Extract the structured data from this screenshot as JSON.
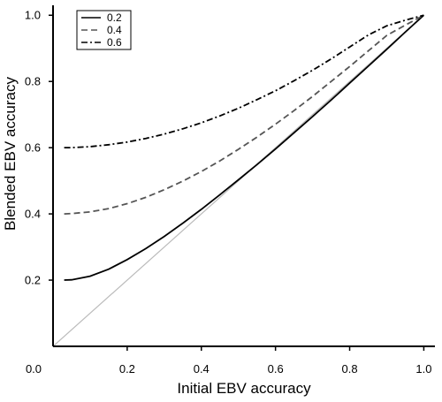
{
  "chart_data": {
    "type": "line",
    "xlabel": "Initial EBV accuracy",
    "ylabel": "Blended EBV accuracy",
    "xlim": [
      0.0,
      1.03
    ],
    "ylim": [
      0.0,
      1.03
    ],
    "origin_label": "0.0",
    "x_ticks": [
      {
        "value": 0.2,
        "label": "0.2"
      },
      {
        "value": 0.4,
        "label": "0.4"
      },
      {
        "value": 0.6,
        "label": "0.6"
      },
      {
        "value": 0.8,
        "label": "0.8"
      },
      {
        "value": 1.0,
        "label": "1.0"
      }
    ],
    "y_ticks": [
      {
        "value": 0.2,
        "label": "0.2"
      },
      {
        "value": 0.4,
        "label": "0.4"
      },
      {
        "value": 0.6,
        "label": "0.6"
      },
      {
        "value": 0.8,
        "label": "0.8"
      },
      {
        "value": 1.0,
        "label": "1.0"
      }
    ],
    "grid": false,
    "legend_position": "top-left",
    "reference_line": {
      "from": [
        0,
        0
      ],
      "to": [
        1.0,
        1.0
      ],
      "color": "#bbbbbb"
    },
    "x": [
      0.03,
      0.05,
      0.1,
      0.15,
      0.2,
      0.25,
      0.3,
      0.35,
      0.4,
      0.45,
      0.5,
      0.55,
      0.6,
      0.65,
      0.7,
      0.75,
      0.8,
      0.85,
      0.9,
      0.95,
      1.0
    ],
    "series": [
      {
        "name": "0.2",
        "dash": "solid",
        "color": "#000000",
        "values": [
          0.2,
          0.201,
          0.212,
          0.233,
          0.262,
          0.295,
          0.332,
          0.372,
          0.414,
          0.458,
          0.503,
          0.549,
          0.596,
          0.645,
          0.694,
          0.744,
          0.795,
          0.846,
          0.897,
          0.949,
          1.0
        ]
      },
      {
        "name": "0.4",
        "dash": "dashed",
        "color": "#555555",
        "values": [
          0.4,
          0.401,
          0.406,
          0.416,
          0.431,
          0.45,
          0.473,
          0.499,
          0.528,
          0.56,
          0.595,
          0.632,
          0.671,
          0.712,
          0.755,
          0.8,
          0.845,
          0.892,
          0.939,
          0.97,
          1.0
        ]
      },
      {
        "name": "0.6",
        "dash": "dash-dot",
        "color": "#000000",
        "values": [
          0.6,
          0.6,
          0.603,
          0.609,
          0.617,
          0.628,
          0.641,
          0.657,
          0.675,
          0.696,
          0.719,
          0.745,
          0.772,
          0.802,
          0.834,
          0.868,
          0.904,
          0.94,
          0.968,
          0.985,
          1.0
        ]
      }
    ]
  }
}
